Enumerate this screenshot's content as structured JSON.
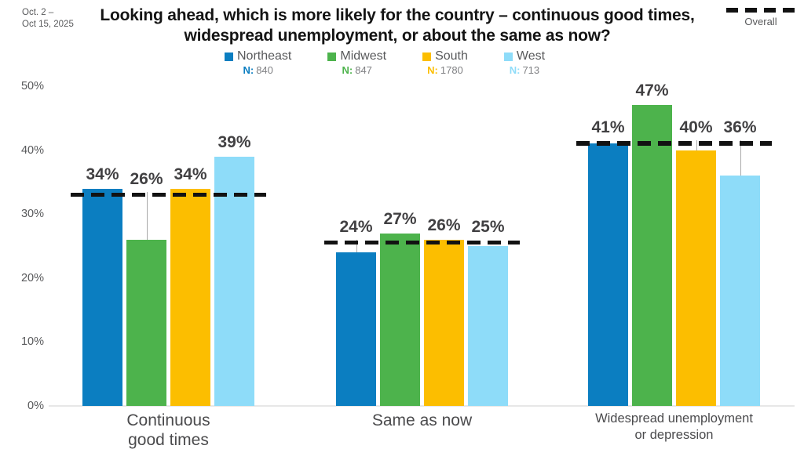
{
  "meta": {
    "date_range": "Oct. 2 –\nOct 15, 2025"
  },
  "title": "Looking ahead, which is more likely for the country – continuous good times, widespread unemployment, or about the same as now?",
  "legend": {
    "items": [
      {
        "label": "Northeast",
        "n_prefix": "N:",
        "n_value": "840",
        "color": "#0b7ec1"
      },
      {
        "label": "Midwest",
        "n_prefix": "N:",
        "n_value": "847",
        "color": "#4db34c"
      },
      {
        "label": "South",
        "n_prefix": "N:",
        "n_value": "1780",
        "color": "#fcbe00"
      },
      {
        "label": "West",
        "n_prefix": "N:",
        "n_value": "713",
        "color": "#8edcf9"
      }
    ],
    "overall_label": "Overall"
  },
  "chart_data": {
    "type": "bar",
    "title": "Looking ahead, which is more likely for the country – continuous good times, widespread unemployment, or about the same as now?",
    "categories": [
      {
        "label": "Continuous good times",
        "display_lines": [
          "Continuous",
          "good times"
        ]
      },
      {
        "label": "Same as now",
        "display_lines": [
          "Same as now"
        ]
      },
      {
        "label": "Widespread unemployment or depression",
        "display_lines": [
          "Widespread unemployment",
          "or depression"
        ]
      }
    ],
    "series": [
      {
        "name": "Northeast",
        "color": "#0b7ec1",
        "n": 840,
        "values": [
          34,
          24,
          41
        ]
      },
      {
        "name": "Midwest",
        "color": "#4db34c",
        "n": 847,
        "values": [
          26,
          27,
          47
        ]
      },
      {
        "name": "South",
        "color": "#fcbe00",
        "n": 1780,
        "values": [
          34,
          26,
          40
        ]
      },
      {
        "name": "West",
        "color": "#8edcf9",
        "n": 713,
        "values": [
          39,
          25,
          36
        ]
      }
    ],
    "overall": {
      "name": "Overall",
      "style": "dashed-black-line",
      "values": [
        33,
        25.5,
        41
      ]
    },
    "value_suffix": "%",
    "xlabel": "",
    "ylabel": "",
    "ylim": [
      0,
      50
    ],
    "yticks": [
      "0%",
      "10%",
      "20%",
      "30%",
      "40%",
      "50%"
    ],
    "grid": false,
    "legend_position": "top"
  }
}
